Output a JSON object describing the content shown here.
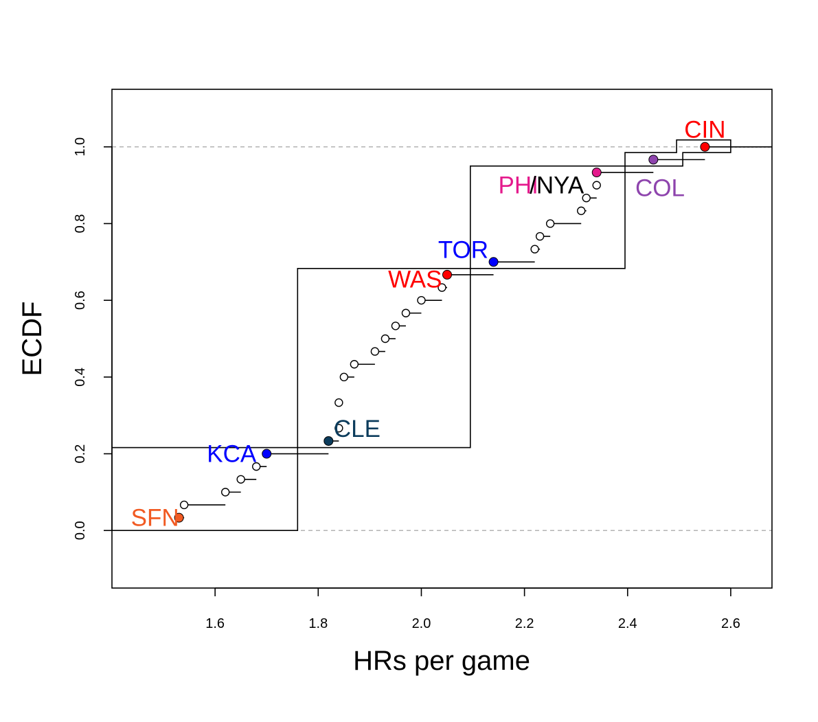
{
  "chart_data": {
    "type": "step-ecdf",
    "xlabel": "HRs per game",
    "ylabel": "ECDF",
    "xlim": [
      1.4,
      2.68
    ],
    "ylim": [
      -0.15,
      1.15
    ],
    "x_ticks": [
      {
        "value": 1.6,
        "label": "1.6"
      },
      {
        "value": 1.8,
        "label": "1.8"
      },
      {
        "value": 2.0,
        "label": "2.0"
      },
      {
        "value": 2.2,
        "label": "2.2"
      },
      {
        "value": 2.4,
        "label": "2.4"
      },
      {
        "value": 2.6,
        "label": "2.6"
      }
    ],
    "y_ticks": [
      {
        "value": 0.0,
        "label": "0.0"
      },
      {
        "value": 0.2,
        "label": "0.2"
      },
      {
        "value": 0.4,
        "label": "0.4"
      },
      {
        "value": 0.6,
        "label": "0.6"
      },
      {
        "value": 0.8,
        "label": "0.8"
      },
      {
        "value": 1.0,
        "label": "1.0"
      }
    ],
    "reference_lines": [
      0.0,
      1.0
    ],
    "band_steps": [
      [
        1.4,
        0.216
      ],
      [
        1.76,
        0.216
      ],
      [
        1.76,
        0.683
      ],
      [
        2.095,
        0.683
      ],
      [
        2.095,
        0.95
      ],
      [
        2.395,
        0.95
      ],
      [
        2.395,
        0.985
      ],
      [
        2.495,
        0.985
      ],
      [
        2.495,
        1.018
      ],
      [
        2.6,
        1.018
      ],
      [
        2.6,
        0.985
      ],
      [
        2.507,
        0.985
      ],
      [
        2.507,
        0.95
      ],
      [
        2.395,
        0.95
      ],
      [
        2.395,
        0.683
      ],
      [
        2.095,
        0.683
      ],
      [
        2.095,
        0.216
      ],
      [
        1.76,
        0.216
      ],
      [
        1.76,
        0.0
      ],
      [
        1.4,
        0.0
      ]
    ],
    "points": [
      {
        "x": 1.53,
        "y": 0.0333,
        "x_next": 1.54,
        "filled": true,
        "color": "#f15a22"
      },
      {
        "x": 1.54,
        "y": 0.0667,
        "x_next": 1.62,
        "filled": false
      },
      {
        "x": 1.62,
        "y": 0.1,
        "x_next": 1.65,
        "filled": false
      },
      {
        "x": 1.65,
        "y": 0.1333,
        "x_next": 1.68,
        "filled": false
      },
      {
        "x": 1.68,
        "y": 0.1667,
        "x_next": 1.7,
        "filled": false
      },
      {
        "x": 1.7,
        "y": 0.2,
        "x_next": 1.82,
        "filled": true,
        "color": "#0000ff"
      },
      {
        "x": 1.82,
        "y": 0.2333,
        "x_next": 1.84,
        "filled": true,
        "color": "#0c3c5c"
      },
      {
        "x": 1.84,
        "y": 0.2667,
        "x_next": 1.84,
        "filled": false
      },
      {
        "x": 1.84,
        "y": 0.3333,
        "x_next": 1.84,
        "filled": false
      },
      {
        "x": 1.85,
        "y": 0.4,
        "x_next": 1.87,
        "filled": false
      },
      {
        "x": 1.87,
        "y": 0.4333,
        "x_next": 1.91,
        "filled": false
      },
      {
        "x": 1.91,
        "y": 0.4667,
        "x_next": 1.93,
        "filled": false
      },
      {
        "x": 1.93,
        "y": 0.5,
        "x_next": 1.95,
        "filled": false
      },
      {
        "x": 1.95,
        "y": 0.5333,
        "x_next": 1.97,
        "filled": false
      },
      {
        "x": 1.97,
        "y": 0.5667,
        "x_next": 2.0,
        "filled": false
      },
      {
        "x": 2.0,
        "y": 0.6,
        "x_next": 2.04,
        "filled": false
      },
      {
        "x": 2.04,
        "y": 0.6333,
        "x_next": 2.05,
        "filled": false
      },
      {
        "x": 2.05,
        "y": 0.6667,
        "x_next": 2.14,
        "filled": true,
        "color": "#ff0000"
      },
      {
        "x": 2.14,
        "y": 0.7,
        "x_next": 2.22,
        "filled": true,
        "color": "#0000ff"
      },
      {
        "x": 2.22,
        "y": 0.7333,
        "x_next": 2.23,
        "filled": false
      },
      {
        "x": 2.23,
        "y": 0.7667,
        "x_next": 2.25,
        "filled": false
      },
      {
        "x": 2.25,
        "y": 0.8,
        "x_next": 2.31,
        "filled": false
      },
      {
        "x": 2.31,
        "y": 0.8333,
        "x_next": 2.32,
        "filled": false
      },
      {
        "x": 2.32,
        "y": 0.8667,
        "x_next": 2.34,
        "filled": false
      },
      {
        "x": 2.34,
        "y": 0.9,
        "x_next": 2.34,
        "filled": false
      },
      {
        "x": 2.34,
        "y": 0.9333,
        "x_next": 2.45,
        "filled": true,
        "color": "#e41a8c"
      },
      {
        "x": 2.45,
        "y": 0.9667,
        "x_next": 2.55,
        "filled": true,
        "color": "#8e44ad"
      },
      {
        "x": 2.55,
        "y": 1.0,
        "x_next": 2.68,
        "filled": true,
        "color": "#ff0000"
      }
    ],
    "team_labels": [
      {
        "text": "SFN",
        "x": 1.53,
        "y": 0.0333,
        "anchor": "end",
        "color": "#f15a22"
      },
      {
        "text": "KCA",
        "x": 1.68,
        "y": 0.2,
        "anchor": "end",
        "color": "#0000ff"
      },
      {
        "text": "CLE",
        "x": 1.83,
        "y": 0.265,
        "anchor": "start",
        "color": "#0c3c5c"
      },
      {
        "text": "WAS",
        "x": 2.04,
        "y": 0.655,
        "anchor": "end",
        "color": "#ff0000"
      },
      {
        "text": "TOR",
        "x": 2.13,
        "y": 0.732,
        "anchor": "end",
        "color": "#0000ff"
      },
      {
        "text": "PHI",
        "x": 2.227,
        "y": 0.9,
        "anchor": "end",
        "color": "#e41a8c"
      },
      {
        "text": "/NYA",
        "x": 2.21,
        "y": 0.9,
        "anchor": "start",
        "color": "#000000"
      },
      {
        "text": "COL",
        "x": 2.415,
        "y": 0.893,
        "anchor": "start",
        "color": "#8e44ad"
      },
      {
        "text": "CIN",
        "x": 2.55,
        "y": 1.045,
        "anchor": "middle",
        "color": "#ff0000"
      }
    ]
  }
}
